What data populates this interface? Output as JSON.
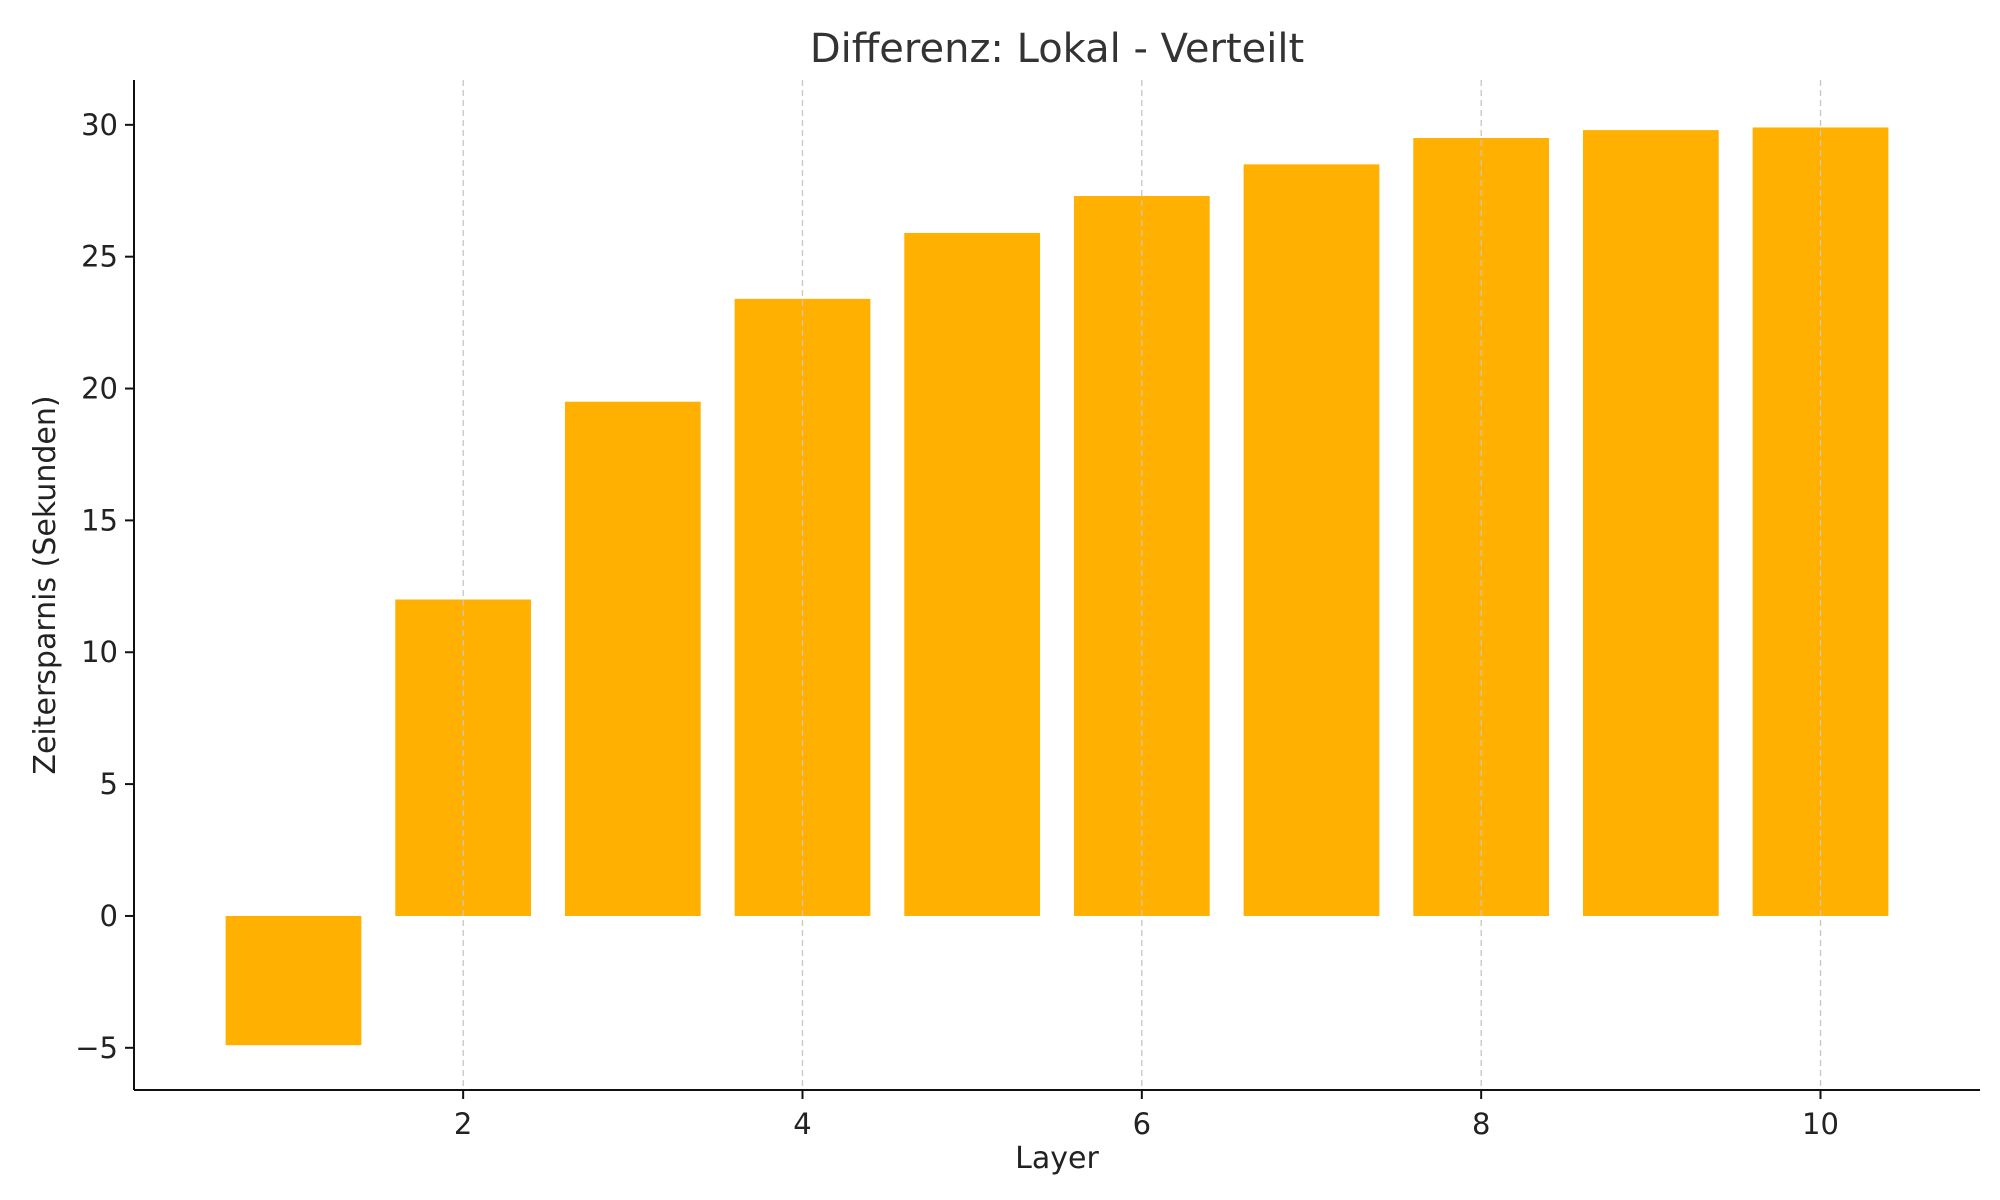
{
  "chart_data": {
    "type": "bar",
    "title": "Differenz: Lokal - Verteilt",
    "xlabel": "Layer",
    "ylabel": "Zeitersparnis (Sekunden)",
    "x": [
      1,
      2,
      3,
      4,
      5,
      6,
      7,
      8,
      9,
      10
    ],
    "values": [
      -4.9,
      12.0,
      19.5,
      23.4,
      25.9,
      27.3,
      28.5,
      29.5,
      29.8,
      29.9
    ],
    "xlim": [
      0.06,
      10.94
    ],
    "ylim": [
      -6.6,
      31.7
    ],
    "xticks": [
      2,
      4,
      6,
      8,
      10
    ],
    "yticks": [
      -5,
      0,
      5,
      10,
      15,
      20,
      25,
      30
    ],
    "ytick_labels": [
      "−5",
      "0",
      "5",
      "10",
      "15",
      "20",
      "25",
      "30"
    ],
    "bar_color": "#FFB000",
    "grid": "x-dashed",
    "legend": "none"
  }
}
